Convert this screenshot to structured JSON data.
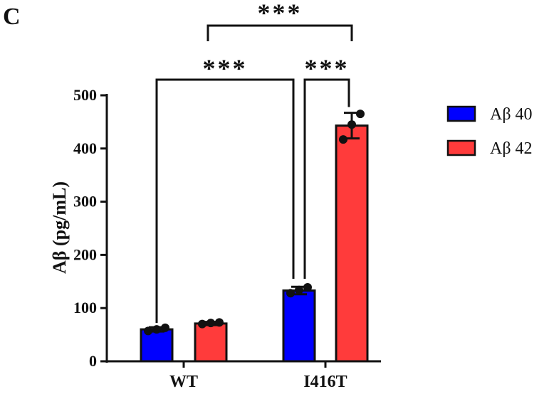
{
  "chart_data": {
    "type": "bar",
    "panel_label": "C",
    "categories": [
      "WT",
      "I416T"
    ],
    "ylabel": "Aβ (pg/mL)",
    "xlabel": "",
    "ylim": [
      0,
      500
    ],
    "yticks": [
      0,
      100,
      200,
      300,
      400,
      500
    ],
    "grid": false,
    "legend_position": "right",
    "series": [
      {
        "name": "Aβ 40",
        "color": "#0000ff",
        "values": [
          60,
          133
        ],
        "error": [
          4,
          7
        ],
        "points": [
          [
            57,
            60,
            63
          ],
          [
            128,
            134,
            139
          ]
        ]
      },
      {
        "name": "Aβ 42",
        "color": "#ff3b3b",
        "values": [
          71,
          443
        ],
        "error": [
          3,
          24
        ],
        "points": [
          [
            70,
            72,
            73
          ],
          [
            417,
            445,
            465
          ]
        ]
      }
    ],
    "significance": [
      {
        "label": "***",
        "from": "WT",
        "to": "I416T Aβ 40"
      },
      {
        "label": "***",
        "from": "I416T Aβ 40",
        "to": "I416T Aβ 42"
      },
      {
        "label": "***",
        "from": "WT Aβ 42",
        "to": "I416T Aβ 42"
      }
    ]
  }
}
